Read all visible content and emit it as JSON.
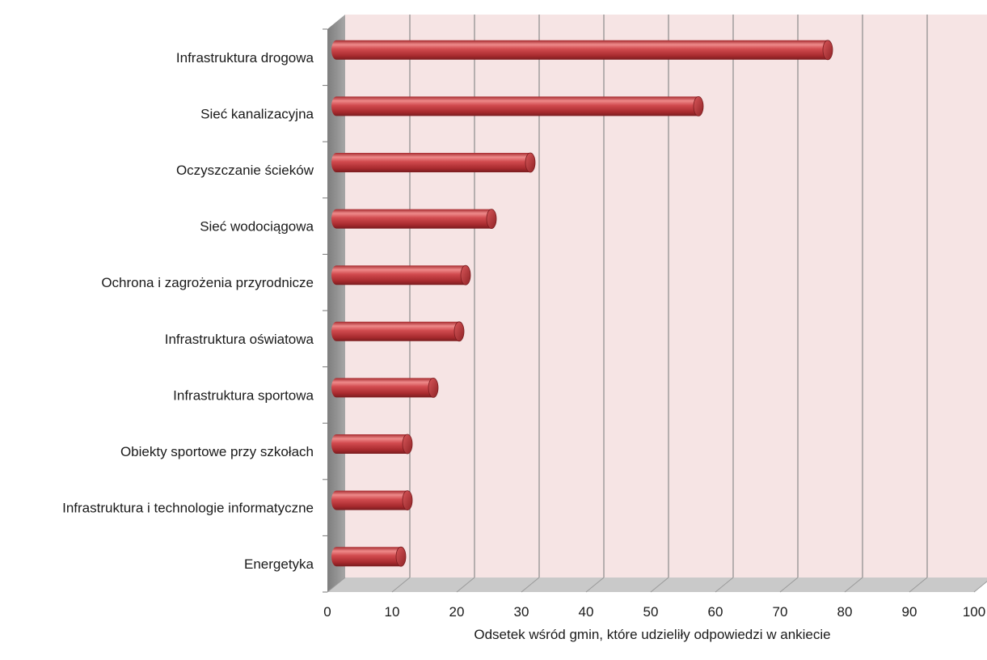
{
  "chart_data": {
    "type": "bar",
    "orientation": "horizontal",
    "categories": [
      "Infrastruktura drogowa",
      "Sieć kanalizacyjna",
      "Oczyszczanie ścieków",
      "Sieć wodociągowa",
      "Ochrona i zagrożenia przyrodnicze",
      "Infrastruktura oświatowa",
      "Infrastruktura sportowa",
      "Obiekty sportowe przy szkołach",
      "Infrastruktura i technologie informatyczne",
      "Energetyka"
    ],
    "values": [
      76,
      56,
      30,
      24,
      20,
      19,
      15,
      11,
      11,
      10
    ],
    "xlabel": "Odsetek wśród gmin, które udzieliły odpowiedzi w ankiecie",
    "ylabel": "",
    "xlim": [
      0,
      100
    ],
    "xticks": [
      "0",
      "10",
      "20",
      "30",
      "40",
      "50",
      "60",
      "70",
      "80",
      "90",
      "100"
    ],
    "grid": true,
    "style": "3d-cylinder",
    "colors": {
      "bar": "#c0393d",
      "bar_highlight": "#ee8a8a",
      "bar_shadow": "#7a1c1f",
      "plot_bg": "#f6e4e4",
      "wall_side": "#8c8c8c",
      "floor": "#c9c9c9",
      "gridline": "#8a8a8a"
    }
  }
}
